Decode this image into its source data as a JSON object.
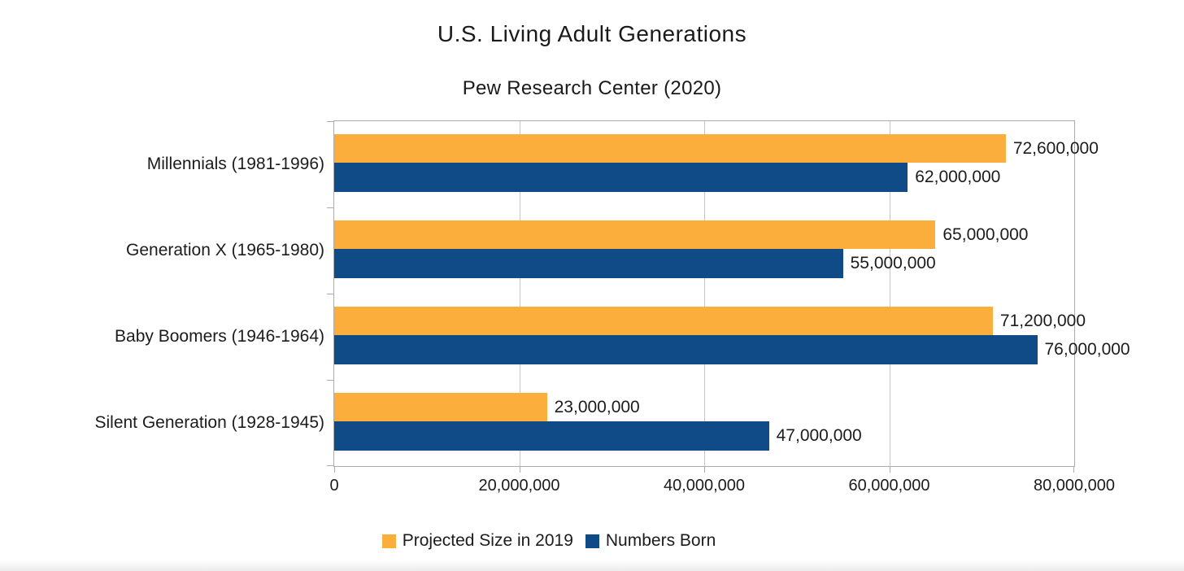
{
  "header": {
    "title": "U.S. Living Adult Generations",
    "subtitle": "Pew Research Center (2020)"
  },
  "chart_data": {
    "type": "bar",
    "orientation": "horizontal",
    "title": "U.S. Living Adult Generations",
    "subtitle": "Pew Research Center (2020)",
    "categories": [
      "Millennials (1981-1996)",
      "Generation X  (1965-1980)",
      "Baby Boomers (1946-1964)",
      "Silent Generation (1928-1945)"
    ],
    "series": [
      {
        "name": "Projected Size in 2019",
        "slug": "projected-size-in-2019",
        "color": "#FBAE3C",
        "values": [
          72600000,
          65000000,
          71200000,
          23000000
        ],
        "labels": [
          "72,600,000",
          "65,000,000",
          "71,200,000",
          "23,000,000"
        ]
      },
      {
        "name": "Numbers Born",
        "slug": "numbers-born",
        "color": "#114B87",
        "values": [
          62000000,
          55000000,
          76000000,
          47000000
        ],
        "labels": [
          "62,000,000",
          "55,000,000",
          "76,000,000",
          "47,000,000"
        ]
      }
    ],
    "xlim": [
      0,
      80000000
    ],
    "x_ticks": [
      {
        "value": 0,
        "label": "0"
      },
      {
        "value": 20000000,
        "label": "20,000,000"
      },
      {
        "value": 40000000,
        "label": "40,000,000"
      },
      {
        "value": 60000000,
        "label": "60,000,000"
      },
      {
        "value": 80000000,
        "label": "80,000,000"
      }
    ],
    "grid": "vertical",
    "legend_position": "bottom",
    "value_label_position": "outside-end"
  },
  "colors": {
    "projected_series": "#FBAE3C",
    "numbers_born_series": "#114B87",
    "gridline": "#c6c6c6",
    "axis": "#ababab",
    "text": "#1c1c1c"
  }
}
